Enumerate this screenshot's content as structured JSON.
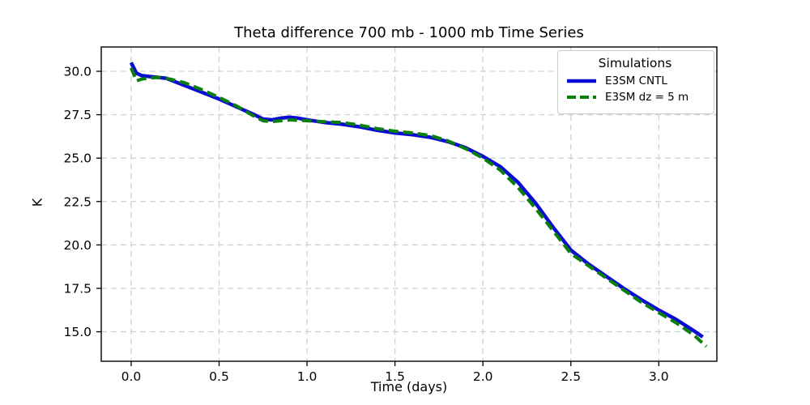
{
  "figure": {
    "title": "Theta difference 700 mb - 1000 mb Time Series",
    "xlabel": "Time (days)",
    "ylabel": "K"
  },
  "legend": {
    "title": "Simulations"
  },
  "chart_data": {
    "type": "line",
    "title": "Theta difference 700 mb - 1000 mb Time Series",
    "xlabel": "Time (days)",
    "ylabel": "K",
    "xlim": [
      -0.17,
      3.33
    ],
    "ylim": [
      13.3,
      31.4
    ],
    "xticks": [
      0.0,
      0.5,
      1.0,
      1.5,
      2.0,
      2.5,
      3.0
    ],
    "xtick_labels": [
      "0.0",
      "0.5",
      "1.0",
      "1.5",
      "2.0",
      "2.5",
      "3.0"
    ],
    "yticks": [
      15.0,
      17.5,
      20.0,
      22.5,
      25.0,
      27.5,
      30.0
    ],
    "ytick_labels": [
      "15.0",
      "17.5",
      "20.0",
      "22.5",
      "25.0",
      "27.5",
      "30.0"
    ],
    "grid": true,
    "legend_position": "upper right",
    "colors": {
      "cntl_blue": "#0b0bd6",
      "dz5_green": "#0a800a",
      "grid": "#c9d4d4",
      "spine": "#000000"
    },
    "series": [
      {
        "name": "E3SM CNTL",
        "style": "solid",
        "color": "#0b0bd6",
        "x": [
          0.0,
          0.03,
          0.06,
          0.1,
          0.15,
          0.2,
          0.3,
          0.4,
          0.5,
          0.6,
          0.7,
          0.75,
          0.8,
          0.85,
          0.9,
          0.95,
          1.0,
          1.1,
          1.2,
          1.3,
          1.4,
          1.5,
          1.6,
          1.7,
          1.8,
          1.9,
          2.0,
          2.1,
          2.2,
          2.3,
          2.4,
          2.5,
          2.6,
          2.7,
          2.8,
          2.9,
          3.0,
          3.1,
          3.2,
          3.25
        ],
        "y": [
          30.5,
          29.9,
          29.75,
          29.7,
          29.65,
          29.6,
          29.2,
          28.8,
          28.4,
          27.95,
          27.5,
          27.25,
          27.2,
          27.3,
          27.35,
          27.3,
          27.2,
          27.05,
          26.95,
          26.8,
          26.6,
          26.45,
          26.35,
          26.2,
          25.95,
          25.6,
          25.1,
          24.5,
          23.6,
          22.4,
          21.0,
          19.7,
          18.9,
          18.2,
          17.5,
          16.85,
          16.25,
          15.7,
          15.05,
          14.7
        ]
      },
      {
        "name": "E3SM dz = 5 m",
        "style": "dashed",
        "color": "#0a800a",
        "x": [
          0.0,
          0.03,
          0.06,
          0.1,
          0.15,
          0.2,
          0.3,
          0.4,
          0.5,
          0.6,
          0.7,
          0.75,
          0.8,
          0.9,
          1.0,
          1.1,
          1.2,
          1.3,
          1.4,
          1.5,
          1.6,
          1.7,
          1.8,
          1.9,
          2.0,
          2.1,
          2.2,
          2.3,
          2.4,
          2.5,
          2.6,
          2.7,
          2.8,
          2.9,
          3.0,
          3.1,
          3.2,
          3.27
        ],
        "y": [
          30.2,
          29.45,
          29.55,
          29.6,
          29.65,
          29.6,
          29.35,
          28.95,
          28.5,
          28.0,
          27.4,
          27.15,
          27.1,
          27.2,
          27.15,
          27.1,
          27.05,
          26.9,
          26.7,
          26.55,
          26.45,
          26.3,
          26.0,
          25.55,
          25.0,
          24.3,
          23.3,
          22.1,
          20.8,
          19.5,
          18.8,
          18.1,
          17.4,
          16.7,
          16.1,
          15.5,
          14.8,
          14.15
        ]
      }
    ]
  }
}
